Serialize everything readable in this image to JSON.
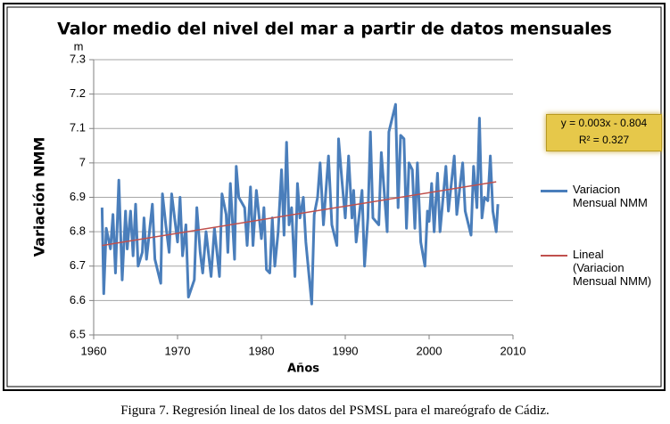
{
  "chart_data": {
    "type": "line",
    "title": "Valor medio del nivel del mar a partir de datos mensuales",
    "y_unit": "m",
    "x_label": "Años",
    "y_label": "Variación NMM",
    "annotation": [
      "y = 0.003x - 0.804",
      "R² = 0.327"
    ],
    "xlim": [
      1960,
      2010
    ],
    "xticks": [
      1960,
      1970,
      1980,
      1990,
      2000,
      2010
    ],
    "ylim": [
      6.5,
      7.3
    ],
    "yticks": [
      6.5,
      6.6,
      6.7,
      6.8,
      6.9,
      7,
      7.1,
      7.2,
      7.3
    ],
    "grid": true,
    "legend": "right",
    "series": [
      {
        "name": "Variacion Mensual NMM",
        "color": "#4a7ebb",
        "width": 3,
        "x": [
          1961,
          1961.2,
          1961.5,
          1962,
          1962.3,
          1962.6,
          1963,
          1963.4,
          1963.8,
          1964,
          1964.4,
          1964.7,
          1965,
          1965.3,
          1965.8,
          1966,
          1966.3,
          1967,
          1967.3,
          1968,
          1968.2,
          1968.6,
          1969,
          1969.3,
          1970,
          1970.3,
          1970.6,
          1971,
          1971.3,
          1972,
          1972.3,
          1972.7,
          1973,
          1973.4,
          1974,
          1974.4,
          1975,
          1975.3,
          1975.8,
          1976,
          1976.3,
          1976.8,
          1977,
          1977.3,
          1978,
          1978.3,
          1978.7,
          1979,
          1979.4,
          1980,
          1980.3,
          1980.6,
          1981,
          1981.3,
          1981.6,
          1982,
          1982.4,
          1982.7,
          1983,
          1983.3,
          1983.6,
          1984,
          1984.3,
          1984.6,
          1985,
          1985.3,
          1986,
          1986.3,
          1986.7,
          1987,
          1987.4,
          1988,
          1988.4,
          1989,
          1989.2,
          1989.6,
          1990,
          1990.4,
          1990.8,
          1991,
          1991.3,
          1992,
          1992.3,
          1992.7,
          1993,
          1993.3,
          1994,
          1994.3,
          1995,
          1995.2,
          1996,
          1996.3,
          1996.6,
          1997,
          1997.3,
          1997.6,
          1998,
          1998.3,
          1998.6,
          1999,
          1999.5,
          1999.8,
          2000,
          2000.3,
          2000.6,
          2001,
          2001.3,
          2002,
          2002.3,
          2003,
          2003.3,
          2004,
          2004.3,
          2005,
          2005.3,
          2005.7,
          2006,
          2006.3,
          2006.6,
          2007,
          2007.3,
          2007.6,
          2008,
          2008.2
        ],
        "values": [
          6.87,
          6.62,
          6.81,
          6.75,
          6.85,
          6.68,
          6.95,
          6.66,
          6.86,
          6.75,
          6.86,
          6.73,
          6.88,
          6.7,
          6.74,
          6.84,
          6.72,
          6.88,
          6.72,
          6.65,
          6.91,
          6.82,
          6.74,
          6.91,
          6.77,
          6.9,
          6.73,
          6.82,
          6.61,
          6.66,
          6.87,
          6.74,
          6.68,
          6.8,
          6.67,
          6.81,
          6.67,
          6.91,
          6.85,
          6.74,
          6.94,
          6.72,
          6.99,
          6.9,
          6.87,
          6.76,
          6.93,
          6.76,
          6.92,
          6.78,
          6.87,
          6.69,
          6.68,
          6.84,
          6.7,
          6.8,
          6.98,
          6.79,
          7.06,
          6.82,
          6.87,
          6.67,
          6.94,
          6.84,
          6.9,
          6.77,
          6.59,
          6.85,
          6.9,
          7,
          6.82,
          7.02,
          6.82,
          6.76,
          7.07,
          6.95,
          6.84,
          7.02,
          6.84,
          6.92,
          6.77,
          6.92,
          6.7,
          6.84,
          7.09,
          6.84,
          6.82,
          7.03,
          6.8,
          7.09,
          7.17,
          6.87,
          7.08,
          7.07,
          6.81,
          7,
          6.98,
          6.81,
          7,
          6.77,
          6.7,
          6.86,
          6.83,
          6.94,
          6.8,
          6.97,
          6.8,
          6.99,
          6.86,
          7.02,
          6.85,
          7,
          6.86,
          6.79,
          6.99,
          6.87,
          7.13,
          6.84,
          6.9,
          6.89,
          7.02,
          6.86,
          6.8,
          6.88
        ]
      },
      {
        "name": "Lineal (Variacion Mensual NMM)",
        "color": "#c0504d",
        "width": 1.5,
        "x": [
          1961,
          2008
        ],
        "values": [
          6.76,
          6.945
        ]
      }
    ]
  },
  "caption": "Figura 7. Regresión lineal de los datos del PSMSL para el mareógrafo de Cádiz."
}
